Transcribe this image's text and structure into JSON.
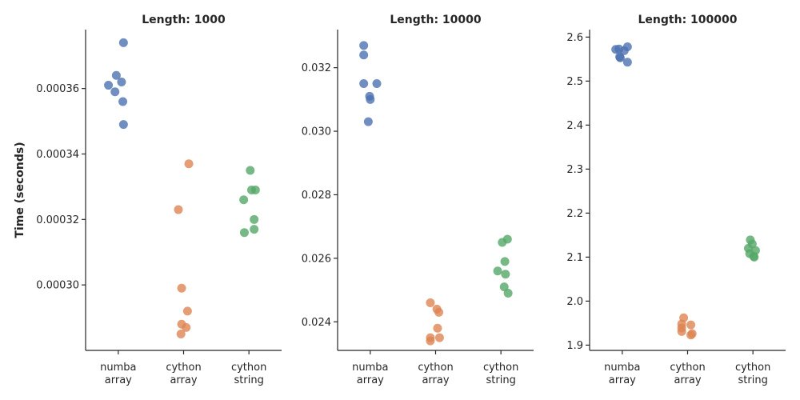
{
  "colors": {
    "numba array": "#4c72b0",
    "cython array": "#dd8452",
    "cython string": "#55a868"
  },
  "chart_data": [
    {
      "type": "scatter",
      "title": "Length: 1000",
      "ylabel": "Time (seconds)",
      "categories": [
        "numba\narray",
        "cython\narray",
        "cython\nstring"
      ],
      "ylim": [
        0.00028,
        0.000378
      ],
      "yticks": [
        "0.00030",
        "0.00032",
        "0.00034",
        "0.00036"
      ],
      "series": [
        {
          "category": 0,
          "points": [
            [
              0.08,
              0.000374
            ],
            [
              -0.03,
              0.000364
            ],
            [
              0.05,
              0.000362
            ],
            [
              -0.15,
              0.000361
            ],
            [
              -0.05,
              0.000359
            ],
            [
              0.07,
              0.000356
            ],
            [
              0.08,
              0.000349
            ]
          ]
        },
        {
          "category": 1,
          "points": [
            [
              0.08,
              0.000337
            ],
            [
              -0.08,
              0.000323
            ],
            [
              -0.03,
              0.000299
            ],
            [
              0.06,
              0.000292
            ],
            [
              -0.03,
              0.000288
            ],
            [
              0.04,
              0.000287
            ],
            [
              -0.04,
              0.000285
            ]
          ]
        },
        {
          "category": 2,
          "points": [
            [
              0.02,
              0.000335
            ],
            [
              0.04,
              0.000329
            ],
            [
              0.1,
              0.000329
            ],
            [
              -0.08,
              0.000326
            ],
            [
              0.08,
              0.00032
            ],
            [
              0.08,
              0.000317
            ],
            [
              -0.07,
              0.000316
            ]
          ]
        }
      ]
    },
    {
      "type": "scatter",
      "title": "Length: 10000",
      "ylabel": "",
      "categories": [
        "numba\narray",
        "cython\narray",
        "cython\nstring"
      ],
      "ylim": [
        0.0231,
        0.0332
      ],
      "yticks": [
        "0.024",
        "0.026",
        "0.028",
        "0.030",
        "0.032"
      ],
      "series": [
        {
          "category": 0,
          "points": [
            [
              -0.1,
              0.0327
            ],
            [
              -0.1,
              0.0324
            ],
            [
              -0.1,
              0.0315
            ],
            [
              0.1,
              0.0315
            ],
            [
              -0.01,
              0.0311
            ],
            [
              0.0,
              0.031
            ],
            [
              -0.03,
              0.0303
            ]
          ]
        },
        {
          "category": 1,
          "points": [
            [
              -0.08,
              0.0246
            ],
            [
              0.02,
              0.0244
            ],
            [
              0.05,
              0.0243
            ],
            [
              0.03,
              0.0238
            ],
            [
              -0.08,
              0.0235
            ],
            [
              0.06,
              0.0235
            ],
            [
              -0.08,
              0.0234
            ]
          ]
        },
        {
          "category": 2,
          "points": [
            [
              0.1,
              0.0266
            ],
            [
              0.02,
              0.0265
            ],
            [
              0.06,
              0.0259
            ],
            [
              -0.05,
              0.0256
            ],
            [
              0.07,
              0.0255
            ],
            [
              0.05,
              0.0251
            ],
            [
              0.11,
              0.0249
            ]
          ]
        }
      ]
    },
    {
      "type": "scatter",
      "title": "Length: 100000",
      "ylabel": "",
      "categories": [
        "numba\narray",
        "cython\narray",
        "cython\nstring"
      ],
      "ylim": [
        1.888,
        2.617
      ],
      "yticks": [
        "1.9",
        "2.0",
        "2.1",
        "2.2",
        "2.3",
        "2.4",
        "2.5",
        "2.6"
      ],
      "series": [
        {
          "category": 0,
          "points": [
            [
              0.08,
              2.578
            ],
            [
              -0.1,
              2.572
            ],
            [
              -0.05,
              2.573
            ],
            [
              0.03,
              2.569
            ],
            [
              -0.04,
              2.555
            ],
            [
              -0.03,
              2.553
            ],
            [
              0.08,
              2.543
            ]
          ]
        },
        {
          "category": 1,
          "points": [
            [
              -0.06,
              1.962
            ],
            [
              0.05,
              1.946
            ],
            [
              -0.09,
              1.948
            ],
            [
              -0.09,
              1.939
            ],
            [
              -0.09,
              1.931
            ],
            [
              0.07,
              1.926
            ],
            [
              0.05,
              1.923
            ]
          ]
        },
        {
          "category": 2,
          "points": [
            [
              -0.04,
              2.139
            ],
            [
              -0.01,
              2.13
            ],
            [
              -0.07,
              2.12
            ],
            [
              0.04,
              2.115
            ],
            [
              -0.05,
              2.108
            ],
            [
              0.01,
              2.102
            ],
            [
              0.02,
              2.1
            ]
          ]
        }
      ]
    }
  ]
}
